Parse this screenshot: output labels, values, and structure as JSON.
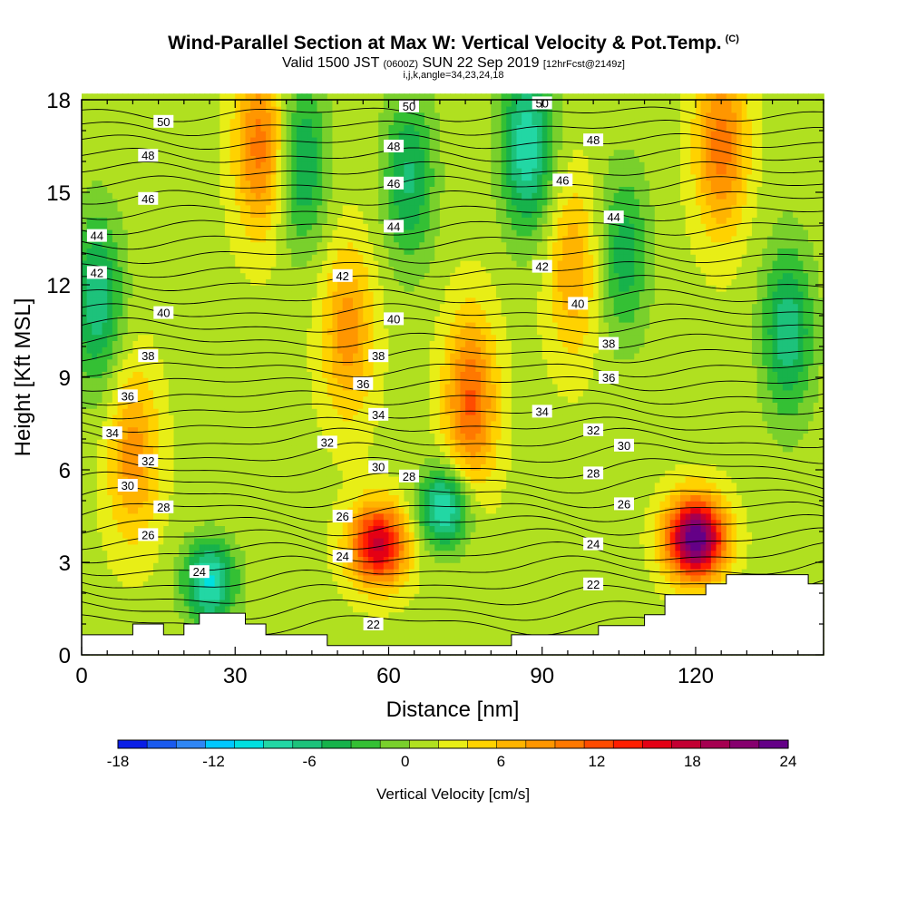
{
  "chart_data": {
    "type": "heatmap",
    "title": "Wind-Parallel Section at Max W: Vertical Velocity & Pot.Temp.",
    "title_suffix": "(C)",
    "subtitle_main": "Valid 1500 JST",
    "subtitle_utc": "(0600Z)",
    "subtitle_date": "SUN 22 Sep 2019",
    "subtitle_fcst": "[12hrFcst@2149z]",
    "subtitle_line3": "i,j,k,angle=34,23,24,18",
    "xlabel": "Distance [nm]",
    "ylabel": "Height [Kft MSL]",
    "xlim": [
      0,
      145
    ],
    "ylim": [
      0,
      18
    ],
    "xticks": [
      0,
      30,
      60,
      90,
      120
    ],
    "yticks": [
      0,
      3,
      6,
      9,
      12,
      15,
      18
    ],
    "colorbar": {
      "label": "Vertical Velocity [cm/s]",
      "tick_labels": [
        "-18",
        "-12",
        "-6",
        "0",
        "6",
        "12",
        "18",
        "24"
      ],
      "tick_values": [
        -18,
        -12,
        -6,
        0,
        6,
        12,
        18,
        24
      ],
      "colors": [
        "#0a1ee6",
        "#1a5aee",
        "#2f86f5",
        "#00c8ff",
        "#00e0e0",
        "#22d7a4",
        "#1dc27b",
        "#17b24b",
        "#34c034",
        "#79d02c",
        "#b0e020",
        "#e8ee16",
        "#ffd200",
        "#ffb400",
        "#ff9600",
        "#ff7800",
        "#ff4b00",
        "#ff1e00",
        "#e40014",
        "#c30032",
        "#a50050",
        "#86006e",
        "#640087"
      ]
    },
    "w_field_centers": [
      {
        "x": 58,
        "y": 3.6,
        "value": 16
      },
      {
        "x": 71,
        "y": 4.8,
        "value": -11
      },
      {
        "x": 120,
        "y": 3.8,
        "value": 23
      },
      {
        "x": 25,
        "y": 2.4,
        "value": -11
      },
      {
        "x": 76,
        "y": 8.2,
        "value": 10
      },
      {
        "x": 87,
        "y": 16.5,
        "value": -10
      },
      {
        "x": 35,
        "y": 16.5,
        "value": 9
      },
      {
        "x": 125,
        "y": 16.5,
        "value": 9
      },
      {
        "x": 3,
        "y": 11.5,
        "value": -8
      },
      {
        "x": 138,
        "y": 10.5,
        "value": -8
      },
      {
        "x": 43,
        "y": 16.0,
        "value": -7
      },
      {
        "x": 64,
        "y": 15.5,
        "value": -7
      },
      {
        "x": 106,
        "y": 13.0,
        "value": -6
      },
      {
        "x": 10,
        "y": 6.5,
        "value": 7
      },
      {
        "x": 52,
        "y": 10.5,
        "value": 7
      },
      {
        "x": 96,
        "y": 12.5,
        "value": 6
      }
    ],
    "theta_contour_labels": [
      {
        "value": "50",
        "x": 16,
        "y": 17.3
      },
      {
        "value": "50",
        "x": 64,
        "y": 17.8
      },
      {
        "value": "50",
        "x": 90,
        "y": 17.9
      },
      {
        "value": "48",
        "x": 13,
        "y": 16.2
      },
      {
        "value": "48",
        "x": 61,
        "y": 16.5
      },
      {
        "value": "48",
        "x": 100,
        "y": 16.7
      },
      {
        "value": "46",
        "x": 13,
        "y": 14.8
      },
      {
        "value": "46",
        "x": 61,
        "y": 15.3
      },
      {
        "value": "46",
        "x": 94,
        "y": 15.4
      },
      {
        "value": "44",
        "x": 3,
        "y": 13.6
      },
      {
        "value": "44",
        "x": 61,
        "y": 13.9
      },
      {
        "value": "44",
        "x": 104,
        "y": 14.2
      },
      {
        "value": "42",
        "x": 3,
        "y": 12.4
      },
      {
        "value": "42",
        "x": 51,
        "y": 12.3
      },
      {
        "value": "42",
        "x": 90,
        "y": 12.6
      },
      {
        "value": "40",
        "x": 16,
        "y": 11.1
      },
      {
        "value": "40",
        "x": 61,
        "y": 10.9
      },
      {
        "value": "40",
        "x": 97,
        "y": 11.4
      },
      {
        "value": "38",
        "x": 13,
        "y": 9.7
      },
      {
        "value": "38",
        "x": 58,
        "y": 9.7
      },
      {
        "value": "38",
        "x": 103,
        "y": 10.1
      },
      {
        "value": "36",
        "x": 9,
        "y": 8.4
      },
      {
        "value": "36",
        "x": 55,
        "y": 8.8
      },
      {
        "value": "36",
        "x": 103,
        "y": 9.0
      },
      {
        "value": "34",
        "x": 6,
        "y": 7.2
      },
      {
        "value": "34",
        "x": 58,
        "y": 7.8
      },
      {
        "value": "34",
        "x": 90,
        "y": 7.9
      },
      {
        "value": "32",
        "x": 13,
        "y": 6.3
      },
      {
        "value": "32",
        "x": 48,
        "y": 6.9
      },
      {
        "value": "32",
        "x": 100,
        "y": 7.3
      },
      {
        "value": "30",
        "x": 9,
        "y": 5.5
      },
      {
        "value": "30",
        "x": 58,
        "y": 6.1
      },
      {
        "value": "30",
        "x": 106,
        "y": 6.8
      },
      {
        "value": "28",
        "x": 16,
        "y": 4.8
      },
      {
        "value": "28",
        "x": 64,
        "y": 5.8
      },
      {
        "value": "28",
        "x": 100,
        "y": 5.9
      },
      {
        "value": "26",
        "x": 13,
        "y": 3.9
      },
      {
        "value": "26",
        "x": 51,
        "y": 4.5
      },
      {
        "value": "26",
        "x": 106,
        "y": 4.9
      },
      {
        "value": "24",
        "x": 23,
        "y": 2.7
      },
      {
        "value": "24",
        "x": 51,
        "y": 3.2
      },
      {
        "value": "24",
        "x": 100,
        "y": 3.6
      },
      {
        "value": "22",
        "x": 57,
        "y": 1.0
      },
      {
        "value": "22",
        "x": 100,
        "y": 2.3
      }
    ],
    "terrain_height_kft": [
      [
        0,
        0.65
      ],
      [
        10,
        0.65
      ],
      [
        10,
        1.0
      ],
      [
        16,
        1.0
      ],
      [
        16,
        0.65
      ],
      [
        20,
        0.65
      ],
      [
        20,
        1.0
      ],
      [
        23,
        1.0
      ],
      [
        23,
        1.35
      ],
      [
        32,
        1.35
      ],
      [
        32,
        1.0
      ],
      [
        36,
        1.0
      ],
      [
        36,
        0.65
      ],
      [
        48,
        0.65
      ],
      [
        48,
        0.3
      ],
      [
        84,
        0.3
      ],
      [
        84,
        0.65
      ],
      [
        101,
        0.65
      ],
      [
        101,
        0.95
      ],
      [
        110,
        0.95
      ],
      [
        110,
        1.3
      ],
      [
        114,
        1.3
      ],
      [
        114,
        1.95
      ],
      [
        122,
        1.95
      ],
      [
        122,
        2.3
      ],
      [
        126,
        2.3
      ],
      [
        126,
        2.6
      ],
      [
        142,
        2.6
      ],
      [
        142,
        2.3
      ],
      [
        145,
        2.3
      ]
    ]
  }
}
